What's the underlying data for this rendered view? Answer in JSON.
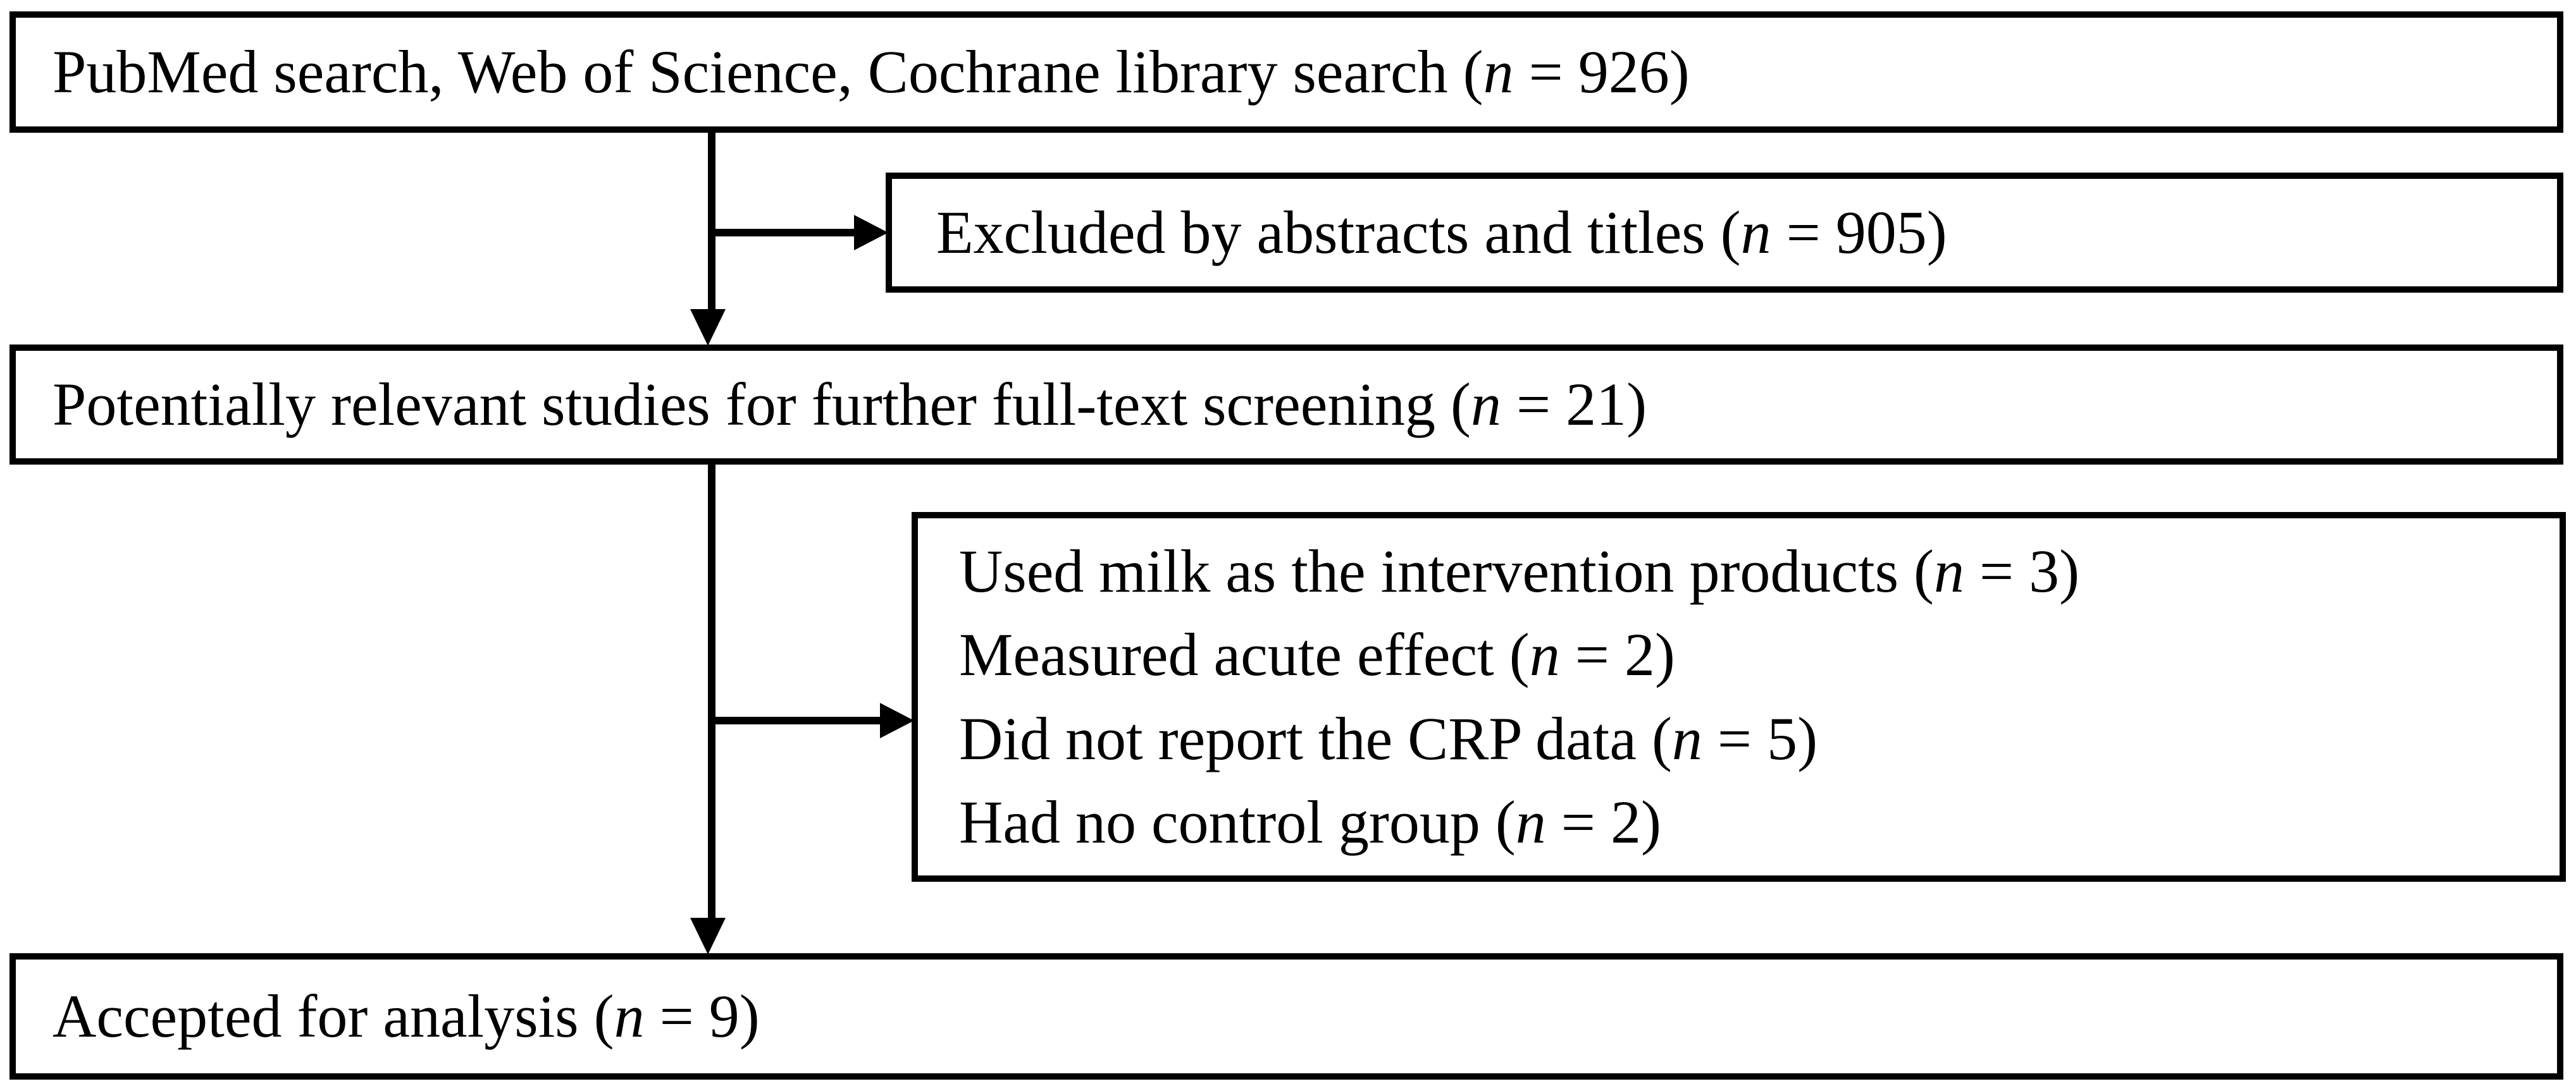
{
  "figure": {
    "kind": "study-selection-flow-diagram",
    "colors": {
      "ink": "#000000",
      "background": "#ffffff"
    }
  },
  "boxes": {
    "identification": {
      "pre": "PubMed search, Web of Science, Cochrane library search (",
      "n": "n",
      "post": " = 926)"
    },
    "excluded_abstracts": {
      "pre": "Excluded by abstracts and titles (",
      "n": "n",
      "post": " = 905)"
    },
    "screening": {
      "pre": "Potentially relevant studies for further full-text screening (",
      "n": "n",
      "post": " = 21)"
    },
    "fulltext_exclusions": {
      "lines": [
        {
          "pre": "Used milk as the intervention products (",
          "n": "n",
          "post": " = 3)"
        },
        {
          "pre": "Measured acute effect (",
          "n": "n",
          "post": " = 2)"
        },
        {
          "pre": "Did not report the CRP data (",
          "n": "n",
          "post": " = 5)"
        },
        {
          "pre": "Had no control group (",
          "n": "n",
          "post": " = 2)"
        }
      ]
    },
    "accepted": {
      "pre": "Accepted for analysis (",
      "n": "n",
      "post": " = 9)"
    }
  }
}
